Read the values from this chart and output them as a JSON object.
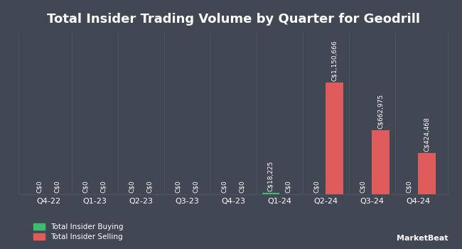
{
  "title": "Total Insider Trading Volume by Quarter for Geodrill",
  "quarters": [
    "Q4-22",
    "Q1-23",
    "Q2-23",
    "Q3-23",
    "Q4-23",
    "Q1-24",
    "Q2-24",
    "Q3-24",
    "Q4-24"
  ],
  "buying": [
    0,
    0,
    0,
    0,
    0,
    18225,
    0,
    0,
    0
  ],
  "selling": [
    0,
    0,
    0,
    0,
    0,
    0,
    1150666,
    662975,
    424468
  ],
  "buying_color": "#3dbb6e",
  "selling_color": "#e05c5c",
  "background_color": "#414854",
  "text_color": "#ffffff",
  "grid_color": "#4e5562",
  "bar_width": 0.38,
  "legend_labels": [
    "Total Insider Buying",
    "Total Insider Selling"
  ],
  "buying_labels": [
    "C$0",
    "C$0",
    "C$0",
    "C$0",
    "C$0",
    "C$18,225",
    "C$0",
    "C$0",
    "C$0"
  ],
  "selling_labels": [
    "C$0",
    "C$0",
    "C$0",
    "C$0",
    "C$0",
    "C$0",
    "C$1,150,666",
    "C$662,975",
    "C$424,468"
  ],
  "ylim_factor": 1.45,
  "title_fontsize": 13,
  "tick_fontsize": 8,
  "label_fontsize": 6.5
}
